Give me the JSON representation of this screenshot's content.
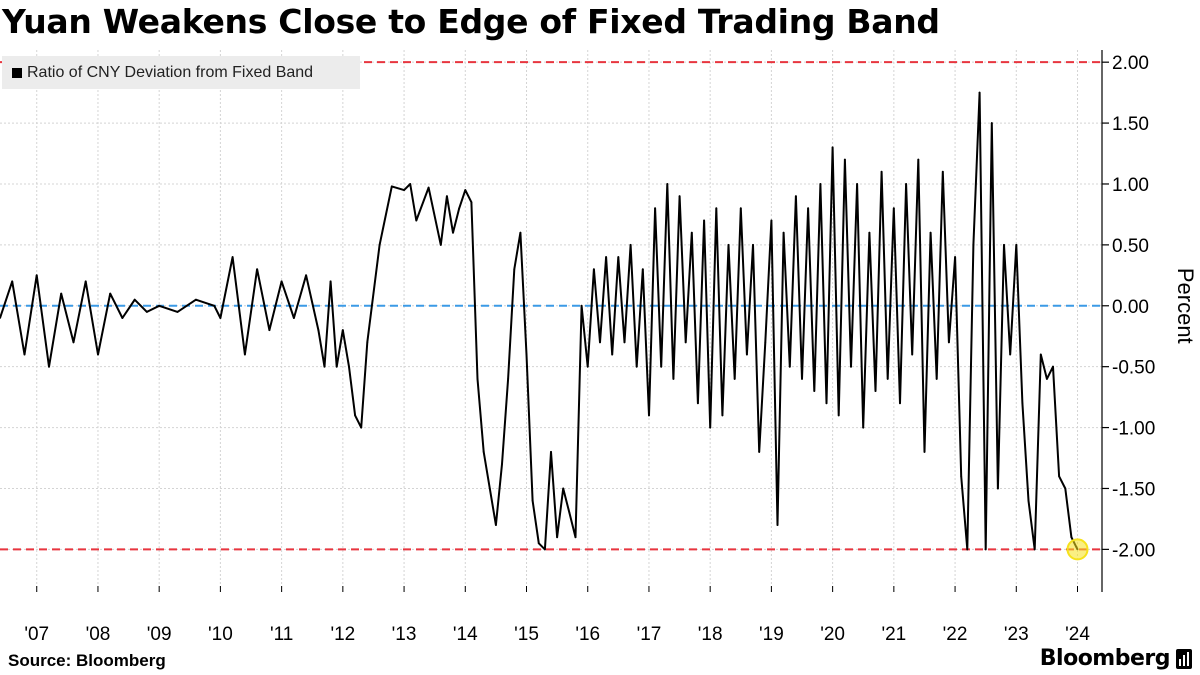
{
  "header": {
    "title": "Yuan Weakens Close to Edge of Fixed Trading Band"
  },
  "legend": {
    "label": "Ratio of CNY Deviation from Fixed Band",
    "swatch_color": "#000000"
  },
  "footer": {
    "source": "Source: Bloomberg",
    "brand": "Bloomberg",
    "brand_icon": "bloomberg-bars-icon"
  },
  "chart_data": {
    "type": "line",
    "title": "Yuan Weakens Close to Edge of Fixed Trading Band",
    "ylabel": "Percent",
    "xlabel": "",
    "ylim": [
      -2.35,
      2.1
    ],
    "y_ticks": [
      2.0,
      1.5,
      1.0,
      0.5,
      0.0,
      -0.5,
      -1.0,
      -1.5,
      -2.0
    ],
    "y_tick_labels": [
      "2.00",
      "1.50",
      "1.00",
      "0.50",
      "0.00",
      "-0.50",
      "-1.00",
      "-1.50",
      "-2.00"
    ],
    "x_ticks": [
      2007,
      2008,
      2009,
      2010,
      2011,
      2012,
      2013,
      2014,
      2015,
      2016,
      2017,
      2018,
      2019,
      2020,
      2021,
      2022,
      2023,
      2024
    ],
    "x_tick_labels": [
      "'07",
      "'08",
      "'09",
      "'10",
      "'11",
      "'12",
      "'13",
      "'14",
      "'15",
      "'16",
      "'17",
      "'18",
      "'19",
      "'20",
      "'21",
      "'22",
      "'23",
      "'24"
    ],
    "xlim": [
      2006.4,
      2024.4
    ],
    "grid": true,
    "legend_position": "top-left",
    "reference_lines": [
      {
        "y": 2.0,
        "color": "#e8353f",
        "style": "dashed"
      },
      {
        "y": 0.0,
        "color": "#3b9ae6",
        "style": "dashed"
      },
      {
        "y": -2.0,
        "color": "#e8353f",
        "style": "dashed"
      }
    ],
    "highlight": {
      "x": 2024.0,
      "y": -2.0,
      "color": "#f6e21c"
    },
    "series": [
      {
        "name": "Ratio of CNY Deviation from Fixed Band",
        "color": "#000000",
        "x": [
          2006.4,
          2006.6,
          2006.8,
          2007.0,
          2007.2,
          2007.4,
          2007.6,
          2007.8,
          2008.0,
          2008.2,
          2008.4,
          2008.6,
          2008.8,
          2009.0,
          2009.3,
          2009.6,
          2009.9,
          2010.0,
          2010.2,
          2010.4,
          2010.6,
          2010.8,
          2011.0,
          2011.2,
          2011.4,
          2011.6,
          2011.7,
          2011.8,
          2011.9,
          2012.0,
          2012.1,
          2012.2,
          2012.3,
          2012.4,
          2012.6,
          2012.8,
          2013.0,
          2013.1,
          2013.2,
          2013.4,
          2013.6,
          2013.7,
          2013.8,
          2013.9,
          2014.0,
          2014.1,
          2014.2,
          2014.3,
          2014.4,
          2014.5,
          2014.6,
          2014.7,
          2014.8,
          2014.9,
          2015.0,
          2015.1,
          2015.2,
          2015.3,
          2015.4,
          2015.5,
          2015.6,
          2015.7,
          2015.8,
          2015.9,
          2016.0,
          2016.1,
          2016.2,
          2016.3,
          2016.4,
          2016.5,
          2016.6,
          2016.7,
          2016.8,
          2016.9,
          2017.0,
          2017.1,
          2017.2,
          2017.3,
          2017.4,
          2017.5,
          2017.6,
          2017.7,
          2017.8,
          2017.9,
          2018.0,
          2018.1,
          2018.2,
          2018.3,
          2018.4,
          2018.5,
          2018.6,
          2018.7,
          2018.8,
          2018.9,
          2019.0,
          2019.1,
          2019.2,
          2019.3,
          2019.4,
          2019.5,
          2019.6,
          2019.7,
          2019.8,
          2019.9,
          2020.0,
          2020.1,
          2020.2,
          2020.3,
          2020.4,
          2020.5,
          2020.6,
          2020.7,
          2020.8,
          2020.9,
          2021.0,
          2021.1,
          2021.2,
          2021.3,
          2021.4,
          2021.5,
          2021.6,
          2021.7,
          2021.8,
          2021.9,
          2022.0,
          2022.1,
          2022.2,
          2022.3,
          2022.4,
          2022.5,
          2022.6,
          2022.7,
          2022.8,
          2022.9,
          2023.0,
          2023.1,
          2023.2,
          2023.3,
          2023.4,
          2023.5,
          2023.6,
          2023.7,
          2023.8,
          2023.9,
          2024.0
        ],
        "values": [
          -0.1,
          0.2,
          -0.4,
          0.25,
          -0.5,
          0.1,
          -0.3,
          0.2,
          -0.4,
          0.1,
          -0.1,
          0.05,
          -0.05,
          0.0,
          -0.05,
          0.05,
          0.0,
          -0.1,
          0.4,
          -0.4,
          0.3,
          -0.2,
          0.2,
          -0.1,
          0.25,
          -0.2,
          -0.5,
          0.2,
          -0.5,
          -0.2,
          -0.5,
          -0.9,
          -1.0,
          -0.3,
          0.5,
          0.98,
          0.95,
          1.0,
          0.7,
          0.97,
          0.5,
          0.9,
          0.6,
          0.8,
          0.95,
          0.85,
          -0.6,
          -1.2,
          -1.5,
          -1.8,
          -1.3,
          -0.6,
          0.3,
          0.6,
          -0.4,
          -1.6,
          -1.95,
          -2.0,
          -1.2,
          -1.9,
          -1.5,
          -1.7,
          -1.9,
          0.0,
          -0.5,
          0.3,
          -0.3,
          0.4,
          -0.4,
          0.4,
          -0.3,
          0.5,
          -0.5,
          0.3,
          -0.9,
          0.8,
          -0.5,
          1.0,
          -0.6,
          0.9,
          -0.3,
          0.6,
          -0.8,
          0.7,
          -1.0,
          0.8,
          -0.9,
          0.5,
          -0.6,
          0.8,
          -0.4,
          0.5,
          -1.2,
          -0.3,
          0.7,
          -1.8,
          0.6,
          -0.5,
          0.9,
          -0.6,
          0.8,
          -0.7,
          1.0,
          -0.8,
          1.3,
          -0.9,
          1.2,
          -0.5,
          1.0,
          -1.0,
          0.6,
          -0.7,
          1.1,
          -0.6,
          0.8,
          -0.8,
          1.0,
          -0.4,
          1.2,
          -1.2,
          0.6,
          -0.6,
          1.1,
          -0.3,
          0.4,
          -1.4,
          -2.0,
          0.5,
          1.75,
          -2.0,
          1.5,
          -1.5,
          0.5,
          -0.4,
          0.5,
          -0.8,
          -1.6,
          -2.0,
          -0.4,
          -0.6,
          -0.5,
          -1.4,
          -1.5,
          -1.9,
          -2.0
        ]
      }
    ]
  }
}
